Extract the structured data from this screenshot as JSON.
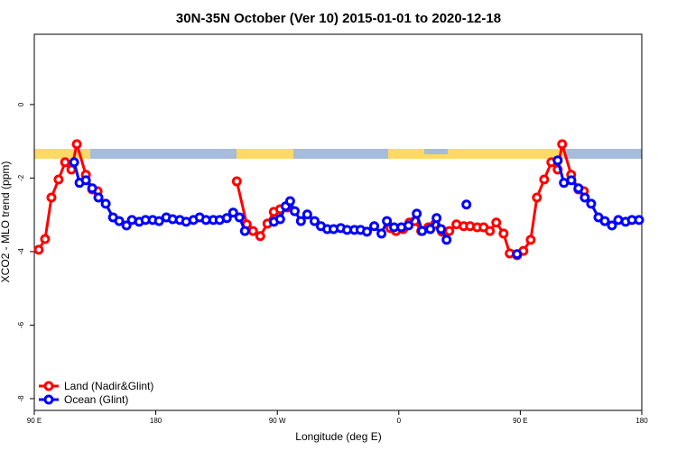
{
  "chart_data": {
    "type": "line",
    "title": "30N-35N October (Ver 10)   2015-01-01 to 2020-12-18",
    "xlabel": "Longitude (deg E)",
    "ylabel": "XCO2 - MLO trend (ppm)",
    "xlim": [
      90,
      540
    ],
    "xticks": [
      {
        "value": 90,
        "label": "90 E"
      },
      180,
      {
        "value": 270,
        "label": "90 W"
      },
      {
        "value": 360,
        "label": "0"
      },
      {
        "value": 450,
        "label": "90 E"
      },
      {
        "value": 540,
        "label": "180"
      }
    ],
    "ylim": [
      -8.32,
      1.91
    ],
    "yticks": [
      0,
      -2,
      -4,
      -6,
      -8
    ],
    "legend": "bottom-left",
    "series": [
      {
        "name": "Land (Nadir&Glint)",
        "color": "#ff0000",
        "x": [
          93.3,
          98,
          102.7,
          108,
          112.8,
          117.5,
          121.5,
          128.2,
          132.9,
          136.9,
          null,
          240,
          247.4,
          252,
          257.4,
          262.7,
          267.4,
          272.1,
          277.5,
          null,
          353.8,
          357.9,
          363.2,
          367.9,
          371.9,
          376.6,
          381.9,
          386.7,
          392,
          397.4,
          402.7,
          408.1,
          412.8,
          418.1,
          422.8,
          427.5,
          432.2,
          437.6,
          442.2,
          447.6,
          452.3,
          457.7,
          462.3,
          467.7,
          473,
          477.7,
          481,
          487.7,
          493,
          497.1
        ],
        "values": [
          -3.95,
          -3.66,
          -2.53,
          -2.04,
          -1.57,
          -1.77,
          -1.08,
          -1.91,
          -2.31,
          -2.36,
          null,
          -2.09,
          -3.26,
          -3.44,
          -3.58,
          -3.24,
          -2.92,
          -2.85,
          -2.8,
          null,
          -3.36,
          -3.44,
          -3.39,
          -3.21,
          -3.17,
          -3.44,
          -3.34,
          -3.26,
          -3.46,
          -3.44,
          -3.26,
          -3.31,
          -3.31,
          -3.34,
          -3.34,
          -3.44,
          -3.21,
          -3.51,
          -4.05,
          -4.1,
          -3.98,
          -3.68,
          -2.53,
          -2.04,
          -1.57,
          -1.77,
          -1.08,
          -1.91,
          -2.31,
          -2.36
        ]
      },
      {
        "name": "Ocean (Glint)",
        "color": "#0000ff",
        "x": [
          119.5,
          123.5,
          128.2,
          132.9,
          137.5,
          142.9,
          148.3,
          152.9,
          158.3,
          162.3,
          167.7,
          172.4,
          177.7,
          182.4,
          187.8,
          192.5,
          197.8,
          202.5,
          207.9,
          212.5,
          217.2,
          222.6,
          227.3,
          232.6,
          237.3,
          242,
          246,
          null,
          267.5,
          272.1,
          276.2,
          279.5,
          282.9,
          287.5,
          292.2,
          297.6,
          302.3,
          307,
          311.7,
          317,
          321.7,
          327.1,
          331.7,
          336.4,
          341.8,
          347.2,
          351.2,
          356.5,
          361.9,
          367.2,
          373.3,
          377.3,
          383.3,
          388,
          391.3,
          395.4,
          null,
          410.1,
          null,
          447.6,
          null,
          477.7,
          482.3,
          487.8,
          493.1,
          497.8,
          502.5,
          507.9,
          512.6,
          517.9,
          522.6,
          528,
          532.7,
          538
        ],
        "values": [
          -1.57,
          -2.13,
          -2.06,
          -2.28,
          -2.53,
          -2.7,
          -3.07,
          -3.17,
          -3.29,
          -3.14,
          -3.19,
          -3.14,
          -3.14,
          -3.17,
          -3.07,
          -3.12,
          -3.14,
          -3.19,
          -3.14,
          -3.07,
          -3.14,
          -3.14,
          -3.14,
          -3.09,
          -2.94,
          -3.07,
          -3.44,
          null,
          -3.19,
          -3.12,
          -2.77,
          -2.63,
          -2.9,
          -3.17,
          -2.99,
          -3.17,
          -3.31,
          -3.39,
          -3.39,
          -3.36,
          -3.41,
          -3.41,
          -3.41,
          -3.46,
          -3.31,
          -3.51,
          -3.17,
          -3.34,
          -3.34,
          -3.29,
          -2.97,
          -3.44,
          -3.39,
          -3.09,
          -3.39,
          -3.68,
          null,
          -2.72,
          null,
          -4.07,
          null,
          -1.52,
          -2.13,
          -2.06,
          -2.28,
          -2.53,
          -2.7,
          -3.07,
          -3.17,
          -3.29,
          -3.14,
          -3.19,
          -3.14,
          -3.14
        ]
      }
    ]
  }
}
